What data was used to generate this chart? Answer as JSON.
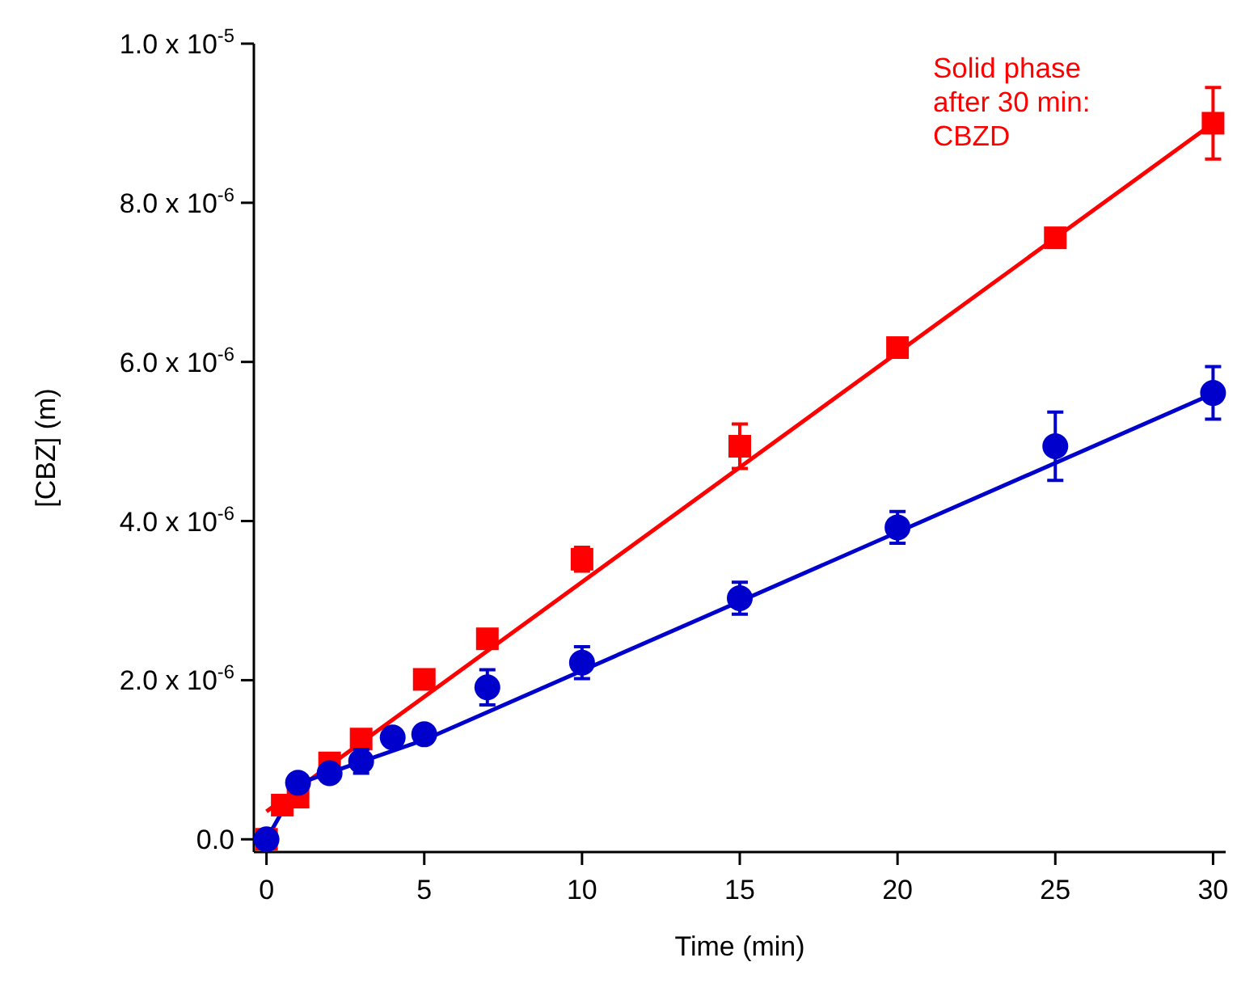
{
  "chart_data": {
    "type": "scatter",
    "xlabel": "Time (min)",
    "ylabel": "[CBZ] (m)",
    "xlim": [
      -0.4,
      30.4
    ],
    "ylim": [
      -1.6e-07,
      1e-05
    ],
    "xticks": [
      0,
      5,
      10,
      15,
      20,
      25,
      30
    ],
    "yticks": [
      {
        "value": 0,
        "label": "0.0"
      },
      {
        "value": 2e-06,
        "label": "2.0 x 10$^{-6}$"
      },
      {
        "value": 4e-06,
        "label": "4.0 x 10$^{-6}$"
      },
      {
        "value": 6e-06,
        "label": "6.0 x 10$^{-6}$"
      },
      {
        "value": 8e-06,
        "label": "8.0 x 10$^{-6}$"
      },
      {
        "value": 1e-05,
        "label": "1.0 x 10$^{-5}$"
      }
    ],
    "grid": false,
    "annotations": [
      "Solid phase\nafter 30 min:\nCBZD"
    ],
    "series": [
      {
        "color": "#ff0000",
        "marker": "square",
        "x": [
          0,
          0.5,
          1,
          2,
          3,
          5,
          7,
          10,
          15,
          20,
          25,
          30
        ],
        "values": [
          0,
          4.3e-07,
          5.3e-07,
          9.6e-07,
          1.26e-06,
          2.01e-06,
          2.52e-06,
          3.52e-06,
          4.94e-06,
          6.18e-06,
          7.56e-06,
          9e-06
        ],
        "errors": [
          null,
          null,
          null,
          null,
          null,
          null,
          null,
          1.5e-07,
          2.8e-07,
          null,
          null,
          4.5e-07
        ]
      },
      {
        "color": "#0000cc",
        "marker": "circle",
        "x": [
          0,
          1,
          2,
          3,
          4,
          5,
          7,
          10,
          15,
          20,
          25,
          30
        ],
        "values": [
          0,
          7.1e-07,
          8.3e-07,
          9.8e-07,
          1.28e-06,
          1.32e-06,
          1.91e-06,
          2.22e-06,
          3.03e-06,
          3.92e-06,
          4.94e-06,
          5.61e-06
        ],
        "errors": [
          null,
          null,
          null,
          1.5e-07,
          null,
          null,
          2.2e-07,
          2e-07,
          2e-07,
          2e-07,
          4.3e-07,
          3.3e-07
        ]
      },
      {
        "type": "line",
        "color": "#ff0000",
        "marker": "none",
        "x": [
          0,
          30
        ],
        "values": [
          3.5e-07,
          9e-06
        ]
      },
      {
        "type": "line",
        "color": "#0000cc",
        "marker": "none",
        "x": [
          0,
          1,
          5,
          30
        ],
        "values": [
          0,
          7e-07,
          1.25e-06,
          5.6e-06
        ]
      }
    ]
  }
}
